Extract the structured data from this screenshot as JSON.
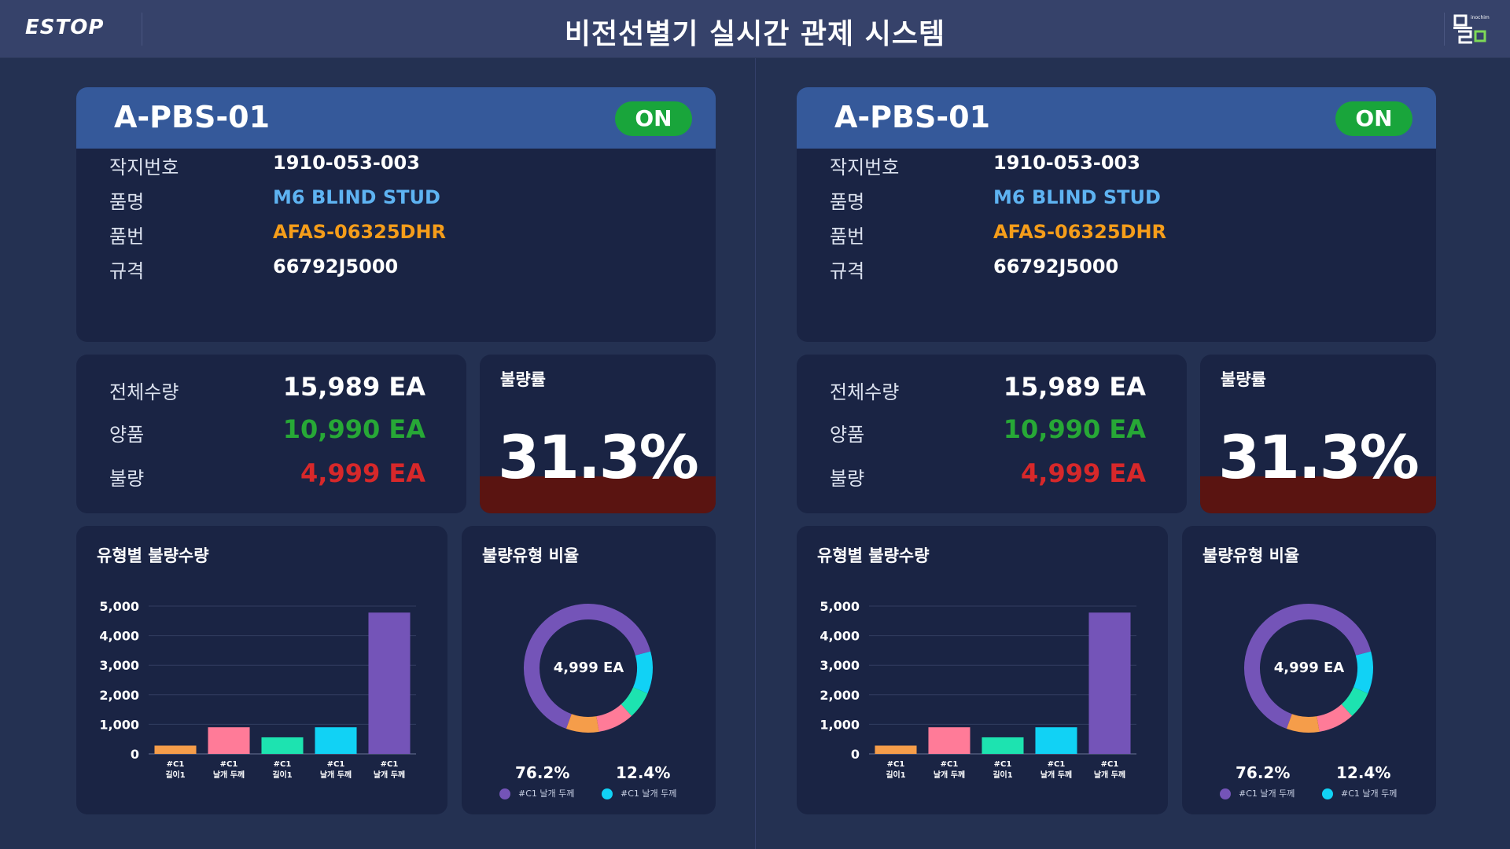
{
  "header": {
    "logo": "ESTOP",
    "title": "비전선별기 실시간 관제 시스템",
    "brand_sub": "inochima"
  },
  "panels": [
    {
      "machine_id": "A-PBS-01",
      "status": "ON",
      "info": [
        {
          "label": "작지번호",
          "value": "1910-053-003",
          "color": "#ffffff"
        },
        {
          "label": "품명",
          "value": "M6 BLIND STUD",
          "color": "#5eb3f2"
        },
        {
          "label": "품번",
          "value": "AFAS-06325DHR",
          "color": "#f59d1a"
        },
        {
          "label": "규격",
          "value": "66792J5000",
          "color": "#ffffff"
        }
      ],
      "quantities": [
        {
          "label": "전체수량",
          "value": "15,989 EA",
          "color": "#ffffff"
        },
        {
          "label": "양품",
          "value": "10,990 EA",
          "color": "#27a836"
        },
        {
          "label": "불량",
          "value": "4,999 EA",
          "color": "#d7282a"
        }
      ],
      "defect_rate": {
        "title": "불량률",
        "value": "31.3%",
        "fill_fraction": 0.313
      },
      "bar_chart": {
        "title": "유형별 불량수량"
      },
      "donut": {
        "title": "불량유형 비율",
        "center": "4,999 EA",
        "pct_left": "76.2%",
        "legend_left": "#C1 날개 두께",
        "pct_right": "12.4%",
        "legend_right": "#C1 날개 두께"
      }
    },
    {
      "machine_id": "A-PBS-01",
      "status": "ON",
      "info": [
        {
          "label": "작지번호",
          "value": "1910-053-003",
          "color": "#ffffff"
        },
        {
          "label": "품명",
          "value": "M6 BLIND STUD",
          "color": "#5eb3f2"
        },
        {
          "label": "품번",
          "value": "AFAS-06325DHR",
          "color": "#f59d1a"
        },
        {
          "label": "규격",
          "value": "66792J5000",
          "color": "#ffffff"
        }
      ],
      "quantities": [
        {
          "label": "전체수량",
          "value": "15,989 EA",
          "color": "#ffffff"
        },
        {
          "label": "양품",
          "value": "10,990 EA",
          "color": "#27a836"
        },
        {
          "label": "불량",
          "value": "4,999 EA",
          "color": "#d7282a"
        }
      ],
      "defect_rate": {
        "title": "불량률",
        "value": "31.3%",
        "fill_fraction": 0.313
      },
      "bar_chart": {
        "title": "유형별 불량수량"
      },
      "donut": {
        "title": "불량유형 비율",
        "center": "4,999 EA",
        "pct_left": "76.2%",
        "legend_left": "#C1 날개 두께",
        "pct_right": "12.4%",
        "legend_right": "#C1 날개 두께"
      }
    }
  ],
  "chart_data": [
    {
      "type": "bar",
      "title": "유형별 불량수량",
      "categories": [
        [
          "#C1",
          "길이1"
        ],
        [
          "#C1",
          "날개 두께"
        ],
        [
          "#C1",
          "길이1"
        ],
        [
          "#C1",
          "날개 두께"
        ],
        [
          "#C1",
          "날개 두께"
        ]
      ],
      "values": [
        280,
        900,
        560,
        900,
        4780
      ],
      "colors": [
        "#f59d4a",
        "#ff7b98",
        "#1de3b0",
        "#11d2f5",
        "#7454b8"
      ],
      "yticks": [
        "5,000",
        "4,000",
        "3,000",
        "2,000",
        "1,000",
        "0"
      ],
      "ylim": [
        0,
        5000
      ],
      "grid": true
    },
    {
      "type": "pie",
      "title": "불량유형 비율",
      "segments": [
        {
          "label": "#C1 날개 두께",
          "value": 76.2,
          "color": "#7454b8"
        },
        {
          "label": "#C1 날개 두께",
          "value": 12.4,
          "color": "#11d2f5"
        },
        {
          "value": 8.0,
          "color": "#1de3b0"
        },
        {
          "value": 10.6,
          "color": "#ff7b98"
        },
        {
          "value": 9.6,
          "color": "#f59d4a"
        }
      ],
      "center_label": "4,999 EA"
    }
  ]
}
